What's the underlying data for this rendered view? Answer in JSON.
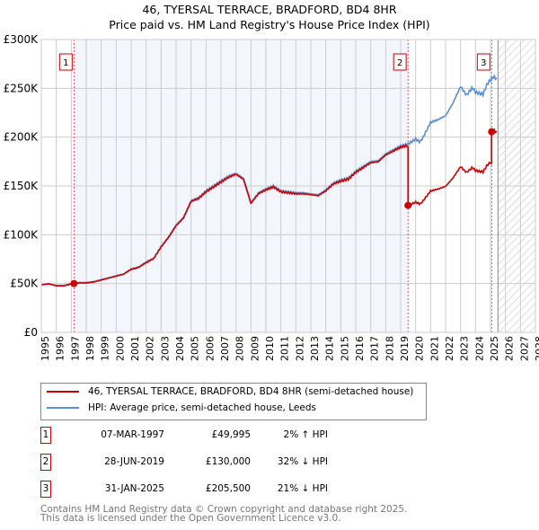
{
  "chart_data": {
    "type": "line",
    "title": "46, TYERSAL TERRACE, BRADFORD, BD4 8HR",
    "subtitle": "Price paid vs. HM Land Registry's House Price Index (HPI)",
    "xlim": [
      1995,
      2028
    ],
    "ylim": [
      0,
      300000
    ],
    "y_ticks": [
      {
        "v": 0,
        "label": "£0"
      },
      {
        "v": 50000,
        "label": "£50K"
      },
      {
        "v": 100000,
        "label": "£100K"
      },
      {
        "v": 150000,
        "label": "£150K"
      },
      {
        "v": 200000,
        "label": "£200K"
      },
      {
        "v": 250000,
        "label": "£250K"
      },
      {
        "v": 300000,
        "label": "£300K"
      }
    ],
    "x_ticks": [
      "1995",
      "1996",
      "1997",
      "1998",
      "1999",
      "2000",
      "2001",
      "2002",
      "2003",
      "2004",
      "2005",
      "2006",
      "2007",
      "2008",
      "2009",
      "2010",
      "2011",
      "2012",
      "2013",
      "2014",
      "2015",
      "2016",
      "2017",
      "2018",
      "2019",
      "2020",
      "2021",
      "2022",
      "2023",
      "2024",
      "2025",
      "2026",
      "2027",
      "2028"
    ],
    "grid": true,
    "forecast_start": 2025.5,
    "series": [
      {
        "name": "46, TYERSAL TERRACE, BRADFORD, BD4 8HR (semi-detached house)",
        "color": "#cc0000",
        "derived_from_hpi": true
      },
      {
        "name": "HPI: Average price, semi-detached house, Leeds",
        "color": "#5b8fd4",
        "x": [
          1995,
          1995.5,
          1996,
          1996.5,
          1997,
          1997.5,
          1998,
          1998.5,
          1999,
          1999.5,
          2000,
          2000.5,
          2001,
          2001.5,
          2002,
          2002.5,
          2003,
          2003.5,
          2004,
          2004.5,
          2005,
          2005.5,
          2006,
          2006.5,
          2007,
          2007.5,
          2008,
          2008.5,
          2009,
          2009.5,
          2010,
          2010.5,
          2011,
          2011.5,
          2012,
          2012.5,
          2013,
          2013.5,
          2014,
          2014.5,
          2015,
          2015.5,
          2016,
          2016.5,
          2017,
          2017.5,
          2018,
          2018.5,
          2019,
          2019.5,
          2020,
          2020.3,
          2020.5,
          2021,
          2021.5,
          2022,
          2022.5,
          2023,
          2023.4,
          2023.8,
          2024,
          2024.5,
          2024.8,
          2025.2,
          2025.45
        ],
        "y": [
          49000,
          50000,
          48000,
          48000,
          50000,
          51000,
          51000,
          52000,
          54000,
          56000,
          58000,
          60000,
          65000,
          67000,
          72000,
          76000,
          88000,
          98000,
          110000,
          118000,
          135000,
          138000,
          145000,
          150000,
          155000,
          160000,
          163000,
          158000,
          133000,
          143000,
          147000,
          150000,
          145000,
          144000,
          143000,
          143000,
          142000,
          141000,
          146000,
          153000,
          156000,
          158000,
          165000,
          170000,
          175000,
          176000,
          183000,
          187000,
          191000,
          193000,
          198000,
          195000,
          200000,
          215000,
          218000,
          222000,
          235000,
          252000,
          243000,
          251000,
          246000,
          244000,
          255000,
          262000,
          259000
        ]
      }
    ],
    "transactions": [
      {
        "id": "1",
        "x": 1997.18,
        "date": "07-MAR-1997",
        "price": 49995,
        "price_label": "£49,995",
        "hpi": "2% ↑ HPI"
      },
      {
        "id": "2",
        "x": 2019.49,
        "date": "28-JUN-2019",
        "price": 130000,
        "price_label": "£130,000",
        "hpi": "32% ↓ HPI"
      },
      {
        "id": "3",
        "x": 2025.08,
        "date": "31-JAN-2025",
        "price": 205500,
        "price_label": "£205,500",
        "hpi": "21% ↓ HPI"
      }
    ]
  },
  "footer": {
    "line1": "Contains HM Land Registry data © Crown copyright and database right 2025.",
    "line2": "This data is licensed under the Open Government Licence v3.0."
  }
}
